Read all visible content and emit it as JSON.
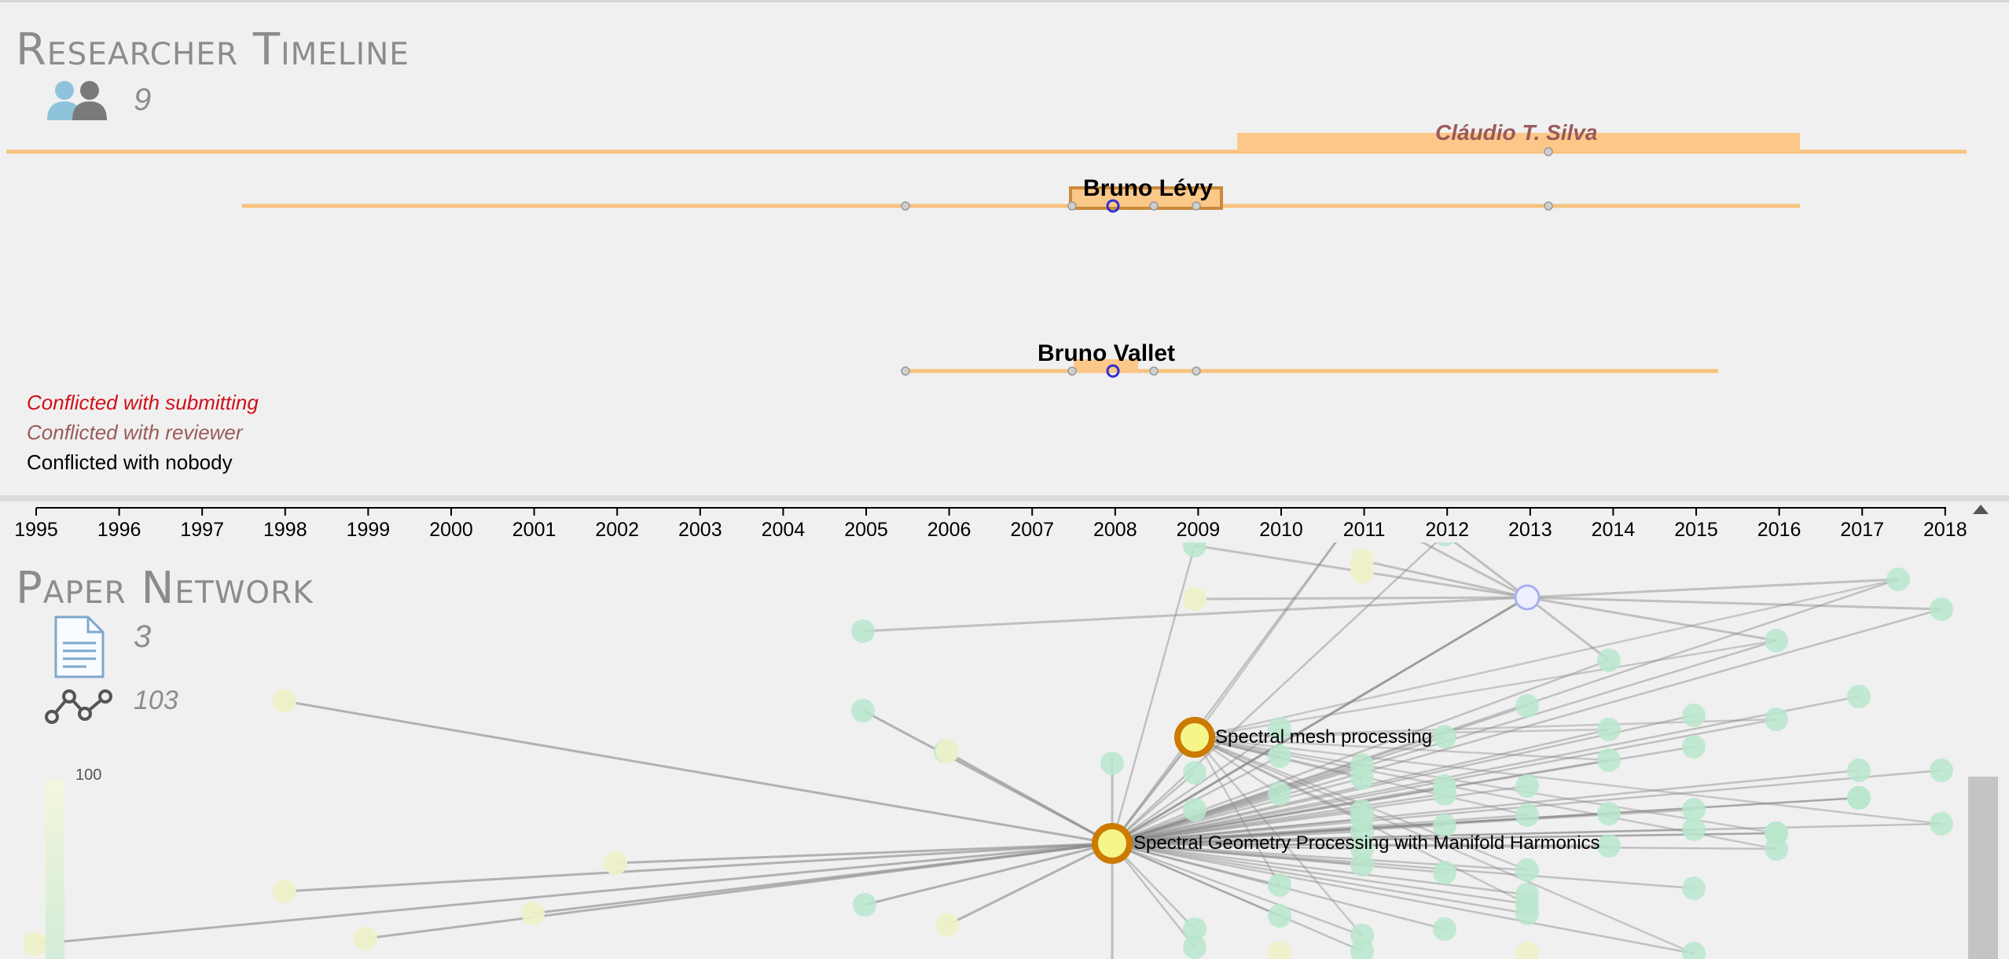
{
  "researcher_timeline": {
    "title": "Researcher Timeline",
    "count": "9",
    "researchers": [
      {
        "name": "Cláudio T. Silva",
        "status": "reviewer"
      },
      {
        "name": "Bruno Lévy",
        "status": "nobody"
      },
      {
        "name": "Bruno Vallet",
        "status": "nobody"
      }
    ],
    "legend": [
      {
        "label": "Conflicted with submitting",
        "color": "#d0101a"
      },
      {
        "label": "Conflicted with reviewer",
        "color": "#9a5a5a"
      },
      {
        "label": "Conflicted with nobody",
        "color": "#000000"
      }
    ]
  },
  "axis": {
    "years": [
      "1995",
      "1996",
      "1997",
      "1998",
      "1999",
      "2000",
      "2001",
      "2002",
      "2003",
      "2004",
      "2005",
      "2006",
      "2007",
      "2008",
      "2009",
      "2010",
      "2011",
      "2012",
      "2013",
      "2014",
      "2015",
      "2016",
      "2017",
      "2018"
    ]
  },
  "paper_network": {
    "title": "Paper Network",
    "paper_count": "3",
    "citation_count": "103",
    "scale_max": "100",
    "papers": [
      {
        "title": "Spectral mesh processing",
        "year": 2009
      },
      {
        "title": "Spectral Geometry Processing with Manifold Harmonics",
        "year": 2008
      }
    ]
  },
  "colors": {
    "timeline_bar": "#fbc88a",
    "timeline_line": "#f7c27e",
    "highlight_node": "#f5f58a",
    "node_ring": "#cc7a00",
    "citing_node": "#b8e6cc",
    "cited_node": "#eef0c8",
    "edge": "#888888"
  },
  "icons": [
    "researchers-icon",
    "document-icon",
    "citation-network-icon"
  ]
}
